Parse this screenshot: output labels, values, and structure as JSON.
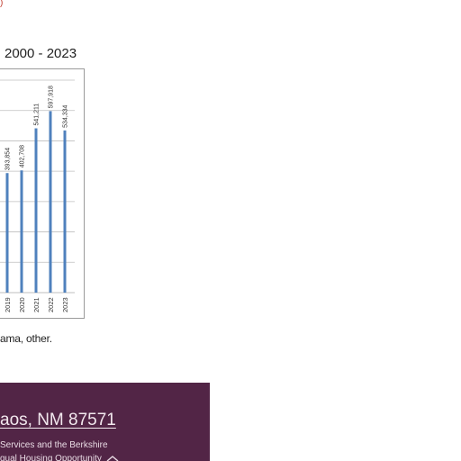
{
  "page": {
    "chart_title": "2000 - 2023",
    "footnote": "ama, other."
  },
  "footer": {
    "address": "aos, NM 87571",
    "line1": "Services and the Berkshire",
    "line2": "qual Housing Opportunity",
    "icon": "equal-housing-icon"
  },
  "colors": {
    "bar": "#4f81bd",
    "footer_bg": "#522546",
    "gridline": "#bfbfbf"
  },
  "chart_data": {
    "type": "bar",
    "title": "2000 - 2023",
    "xlabel": "",
    "ylabel": "",
    "grid": true,
    "ylim": [
      0,
      700000
    ],
    "categories": [
      "2019",
      "2020",
      "2021",
      "2022",
      "2023"
    ],
    "values": [
      393854,
      402708,
      541211,
      597918,
      534334
    ],
    "value_labels": [
      "393,854",
      "402,708",
      "541,211",
      "597,918",
      "534,334"
    ]
  }
}
